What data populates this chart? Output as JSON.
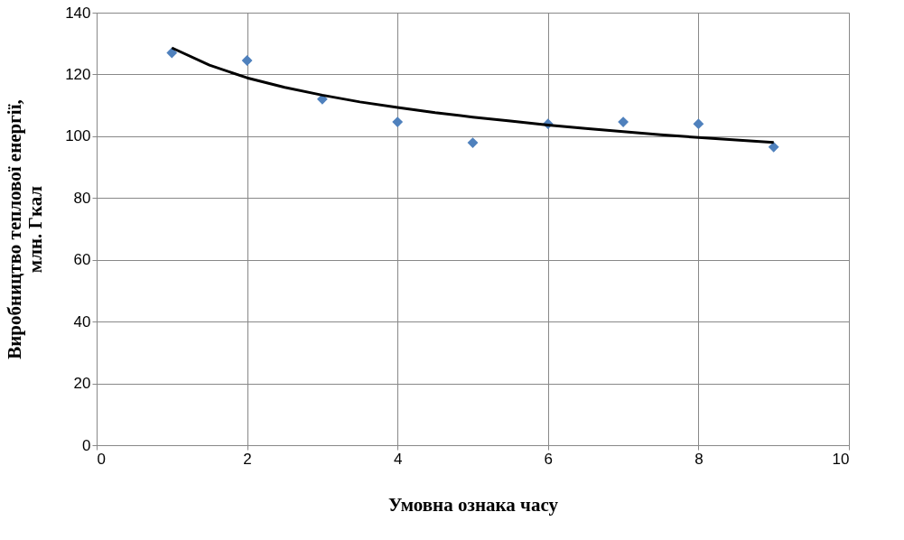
{
  "chart_data": {
    "type": "scatter",
    "xlabel": "Умовна ознака часу",
    "ylabel": "Виробництво теплової енергії,\nмлн. Гкал",
    "xlim": [
      0,
      10
    ],
    "xticks": [
      0,
      2,
      4,
      6,
      8,
      10
    ],
    "ylim": [
      0,
      140
    ],
    "yticks": [
      0,
      20,
      40,
      60,
      80,
      100,
      120,
      140
    ],
    "grid": true,
    "marker": "diamond",
    "legend": false,
    "series": [
      {
        "color": "#4f81bd",
        "x": [
          1,
          2,
          3,
          4,
          5,
          6,
          7,
          8,
          9
        ],
        "values": [
          127,
          124.5,
          112,
          104.6,
          97.9,
          104,
          104.6,
          104,
          96.5
        ]
      },
      {
        "type": "line",
        "color": "#000000",
        "line_style": "solid",
        "marker": "none",
        "x": [
          1,
          1.5,
          2,
          2.5,
          3,
          3.5,
          4,
          4.5,
          5,
          5.5,
          6,
          6.5,
          7,
          7.5,
          8,
          8.5,
          9
        ],
        "values": [
          128.6,
          123,
          118.9,
          115.8,
          113.3,
          111.1,
          109.3,
          107.6,
          106.2,
          104.9,
          103.6,
          102.5,
          101.5,
          100.5,
          99.6,
          98.8,
          98.0
        ]
      }
    ]
  }
}
